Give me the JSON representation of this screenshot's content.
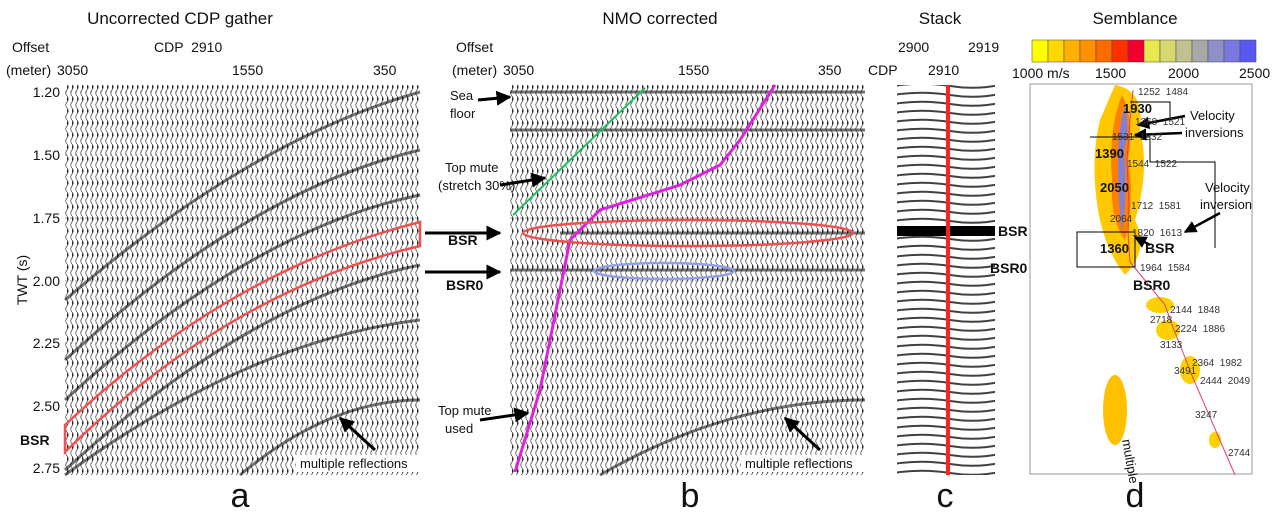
{
  "panels": [
    {
      "title": "Uncorrected CDP gather",
      "offset_label": "Offset",
      "unit_label": "(meter)",
      "offset_ticks": [
        "3050",
        "1550",
        "350"
      ],
      "cdp_label": "CDP  2910",
      "y_axis_label": "TWT (s)",
      "y_ticks": [
        "1.20",
        "1.50",
        "1.75",
        "2.00",
        "2.25",
        "2.50",
        "2.75"
      ],
      "annotations": [
        "BSR",
        "multiple reflections"
      ],
      "letter": "a"
    },
    {
      "title": "NMO corrected",
      "offset_label": "Offset",
      "unit_label": "(meter)",
      "offset_ticks": [
        "3050",
        "1550",
        "350"
      ],
      "annotations": [
        "Sea",
        "floor",
        "Top mute",
        "(stretch 30%)",
        "BSR",
        "BSR0",
        "Top mute",
        "used",
        "multiple reflections"
      ],
      "letter": "b"
    },
    {
      "title": "Stack",
      "cdp_ticks": [
        "2900",
        "2910",
        "2919"
      ],
      "cdp_label": "CDP",
      "annotations": [
        "BSR",
        "BSR0"
      ],
      "letter": "c"
    },
    {
      "title": "Semblance",
      "colorbar_labels": [
        "1000 m/s",
        "1500",
        "2000",
        "2500"
      ],
      "annotations": [
        "Velocity",
        "inversions",
        "Velocity",
        "inversion",
        "BSR",
        "BSR0",
        "multiple"
      ],
      "interval_velocities": [
        "1930",
        "1390",
        "2050",
        "2064",
        "1360"
      ],
      "picks": [
        "1252  1484",
        "1368  1521",
        "1531  1532",
        "1544  1522",
        "1712  1581",
        "1820  1613",
        "1964  1584",
        "2144  1848",
        "2718",
        "2224  1886",
        "3133",
        "2364  1982",
        "3491",
        "2444  2049",
        "3247",
        "2744"
      ],
      "letter": "d"
    }
  ]
}
